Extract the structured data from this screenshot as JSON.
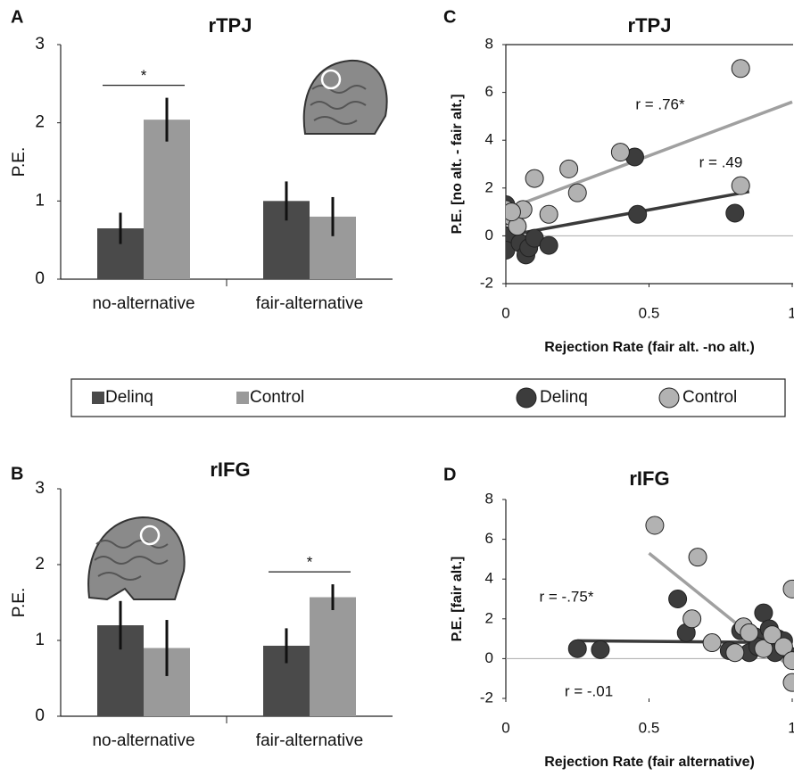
{
  "chart_data": [
    {
      "type": "bar",
      "panel": "A",
      "title": "rTPJ",
      "ylabel": "P.E.",
      "categories": [
        "no-alternative",
        "fair-alternative"
      ],
      "series": [
        {
          "name": "Delinq",
          "color": "#4a4a4a",
          "values": [
            0.65,
            1.0
          ],
          "errors": [
            0.2,
            0.25
          ]
        },
        {
          "name": "Control",
          "color": "#9a9a9a",
          "values": [
            2.04,
            0.8
          ],
          "errors": [
            0.28,
            0.25
          ]
        }
      ],
      "ylim": [
        0,
        3
      ],
      "yticks": [
        0,
        1,
        2,
        3
      ],
      "significance": {
        "category": 0,
        "label": "*"
      }
    },
    {
      "type": "bar",
      "panel": "B",
      "title": "rIFG",
      "ylabel": "P.E.",
      "categories": [
        "no-alternative",
        "fair-alternative"
      ],
      "series": [
        {
          "color": "#4a4a4a",
          "values": [
            1.2,
            0.93
          ],
          "errors": [
            0.32,
            0.23
          ]
        },
        {
          "color": "#9a9a9a",
          "values": [
            0.9,
            1.57
          ],
          "errors": [
            0.37,
            0.17
          ]
        }
      ],
      "ylim": [
        0,
        3
      ],
      "yticks": [
        0,
        1,
        2,
        3
      ],
      "significance": {
        "category": 1,
        "label": "*"
      }
    },
    {
      "type": "scatter",
      "panel": "C",
      "title": "rTPJ",
      "xlabel": "Rejection Rate (fair alt. -no alt.)",
      "ylabel": "P.E. [no alt. - fair alt.]",
      "xlim": [
        0,
        1
      ],
      "xticks": [
        0,
        0.5,
        1
      ],
      "ylim": [
        -2,
        8
      ],
      "yticks": [
        -2,
        0,
        2,
        4,
        6,
        8
      ],
      "series": [
        {
          "name": "Delinq",
          "color": "#3c3c3c",
          "x": [
            0,
            0,
            0,
            0,
            0.05,
            0.07,
            0.08,
            0.1,
            0.15,
            0.45,
            0.46,
            0.8
          ],
          "values": [
            1.3,
            0.9,
            0,
            -0.6,
            -0.3,
            -0.8,
            -0.5,
            -0.1,
            -0.4,
            3.3,
            0.9,
            0.95
          ],
          "fit": {
            "x": [
              0,
              0.85
            ],
            "y": [
              0,
              1.85
            ]
          }
        },
        {
          "name": "Control",
          "color": "#b2b2b2",
          "x": [
            0,
            0.02,
            0.04,
            0.06,
            0.1,
            0.15,
            0.22,
            0.25,
            0.4,
            0.82,
            0.82,
            0.02
          ],
          "values": [
            1.1,
            0.8,
            0.4,
            1.1,
            2.4,
            0.9,
            2.8,
            1.8,
            3.5,
            7,
            2.1,
            1.0
          ],
          "fit": {
            "x": [
              0,
              1
            ],
            "y": [
              1.1,
              5.6
            ]
          }
        }
      ],
      "annotations": [
        "r = .76*",
        "r = .49"
      ]
    },
    {
      "type": "scatter",
      "panel": "D",
      "title": "rIFG",
      "xlabel": "Rejection Rate (fair alternative)",
      "ylabel": "P.E. [fair alt.]",
      "xlim": [
        0,
        1
      ],
      "xticks": [
        0,
        0.5,
        1
      ],
      "ylim": [
        -2,
        8
      ],
      "yticks": [
        -2,
        0,
        2,
        4,
        6,
        8
      ],
      "series": [
        {
          "color": "#3c3c3c",
          "x": [
            0.25,
            0.33,
            0.6,
            0.63,
            0.78,
            0.82,
            0.85,
            0.87,
            0.9,
            0.92,
            0.95,
            0.97,
            1.0,
            0.88,
            0.94
          ],
          "values": [
            0.5,
            0.45,
            3,
            1.3,
            0.4,
            1.4,
            0.3,
            1.1,
            2.3,
            1.5,
            1.0,
            0.9,
            0.1,
            0.6,
            0.3
          ],
          "fit": {
            "x": [
              0.25,
              1
            ],
            "y": [
              0.9,
              0.8
            ]
          }
        },
        {
          "color": "#b2b2b2",
          "x": [
            0.52,
            0.67,
            0.65,
            0.72,
            0.8,
            0.83,
            0.85,
            0.9,
            0.93,
            0.97,
            1.0,
            1.0,
            1.0
          ],
          "values": [
            6.7,
            5.1,
            2.0,
            0.8,
            0.3,
            1.6,
            1.3,
            0.5,
            1.2,
            0.6,
            3.5,
            -1.2,
            -0.1
          ],
          "fit": {
            "x": [
              0.5,
              1
            ],
            "y": [
              5.3,
              -0.5
            ]
          }
        }
      ],
      "annotations": [
        "r = -.75*",
        "r = -.01"
      ]
    }
  ]
}
